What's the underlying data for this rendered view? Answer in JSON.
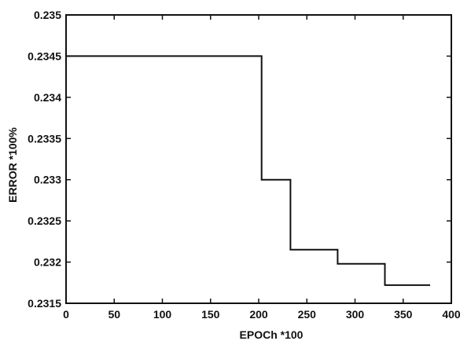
{
  "chart_data": {
    "type": "line",
    "title": "",
    "xlabel": "EPOCh *100",
    "ylabel": "ERROR *100%",
    "xlim": [
      0,
      400
    ],
    "ylim": [
      0.2315,
      0.235
    ],
    "xticks": [
      0,
      50,
      100,
      150,
      200,
      250,
      300,
      350,
      400
    ],
    "yticks": [
      0.2315,
      0.232,
      0.2325,
      0.233,
      0.2335,
      0.234,
      0.2345,
      0.235
    ],
    "xtick_labels": [
      "0",
      "50",
      "100",
      "150",
      "200",
      "250",
      "300",
      "350",
      "400"
    ],
    "ytick_labels": [
      "0.2315",
      "0.232",
      "0.2325",
      "0.233",
      "0.2335",
      "0.234",
      "0.2345",
      "0.235"
    ],
    "grid": false,
    "series": [
      {
        "x": [
          0,
          203,
          203,
          233,
          233,
          282,
          282,
          331,
          331,
          378
        ],
        "y": [
          0.2345,
          0.2345,
          0.233,
          0.233,
          0.23215,
          0.23215,
          0.23198,
          0.23198,
          0.23172,
          0.23172
        ],
        "color": "#111111"
      }
    ]
  }
}
